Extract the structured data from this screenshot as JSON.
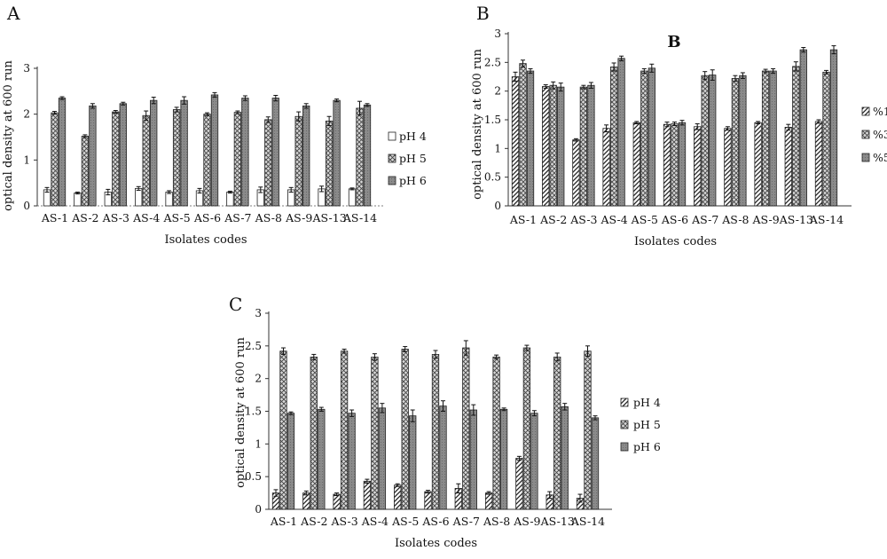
{
  "chart_data": [
    {
      "panel": "A",
      "type": "bar",
      "title": "",
      "xlabel": "Isolates codes",
      "ylabel": "optical density at 600 run",
      "ylim": [
        0,
        3
      ],
      "yticks": [
        "0",
        "1",
        "2",
        "3"
      ],
      "categories": [
        "AS-1",
        "AS-2",
        "AS-3",
        "AS-4",
        "AS-5",
        "AS-6",
        "AS-7",
        "AS-8",
        "AS-9",
        "AS-13",
        "AS-14"
      ],
      "legend_position": "right",
      "series": [
        {
          "name": "pH 4",
          "pattern": "white",
          "values": [
            0.35,
            0.28,
            0.3,
            0.38,
            0.3,
            0.33,
            0.3,
            0.35,
            0.35,
            0.37,
            0.37
          ],
          "errors": [
            0.05,
            0.02,
            0.06,
            0.04,
            0.03,
            0.05,
            0.02,
            0.06,
            0.05,
            0.06,
            0.02
          ]
        },
        {
          "name": "pH 5",
          "pattern": "hatch",
          "values": [
            2.03,
            1.52,
            2.05,
            1.97,
            2.1,
            2.0,
            2.04,
            1.88,
            1.95,
            1.85,
            2.13
          ],
          "errors": [
            0.03,
            0.03,
            0.03,
            0.1,
            0.05,
            0.03,
            0.03,
            0.06,
            0.1,
            0.1,
            0.15
          ]
        },
        {
          "name": "pH 6",
          "pattern": "gray",
          "values": [
            2.35,
            2.18,
            2.23,
            2.3,
            2.3,
            2.42,
            2.35,
            2.35,
            2.18,
            2.3,
            2.2
          ],
          "errors": [
            0.03,
            0.05,
            0.03,
            0.07,
            0.08,
            0.05,
            0.05,
            0.06,
            0.05,
            0.03,
            0.03
          ]
        }
      ]
    },
    {
      "panel": "B",
      "type": "bar",
      "title": "B",
      "xlabel": "Isolates codes",
      "ylabel": "optical density at 600 run",
      "ylim": [
        0,
        3
      ],
      "yticks": [
        "0",
        "0.5",
        "1",
        "1.5",
        "2",
        "2.5",
        "3"
      ],
      "categories": [
        "AS-1",
        "AS-2",
        "AS-3",
        "AS-4",
        "AS-5",
        "AS-6",
        "AS-7",
        "AS-8",
        "AS-9",
        "AS-13",
        "AS-14"
      ],
      "legend_position": "right",
      "series": [
        {
          "name": "%1",
          "pattern": "diag",
          "values": [
            2.25,
            2.08,
            1.15,
            1.35,
            1.45,
            1.42,
            1.38,
            1.35,
            1.45,
            1.37,
            1.47
          ],
          "errors": [
            0.08,
            0.03,
            0.02,
            0.06,
            0.02,
            0.04,
            0.05,
            0.03,
            0.02,
            0.05,
            0.03
          ]
        },
        {
          "name": "%3",
          "pattern": "hatch",
          "values": [
            2.48,
            2.1,
            2.07,
            2.42,
            2.35,
            1.43,
            2.27,
            2.22,
            2.35,
            2.43,
            2.33
          ],
          "errors": [
            0.06,
            0.06,
            0.03,
            0.07,
            0.04,
            0.03,
            0.07,
            0.05,
            0.03,
            0.08,
            0.03
          ]
        },
        {
          "name": "%5",
          "pattern": "gray",
          "values": [
            2.35,
            2.07,
            2.1,
            2.57,
            2.4,
            1.45,
            2.28,
            2.27,
            2.35,
            2.72,
            2.72
          ],
          "errors": [
            0.04,
            0.07,
            0.05,
            0.04,
            0.07,
            0.04,
            0.09,
            0.05,
            0.04,
            0.04,
            0.07
          ]
        }
      ]
    },
    {
      "panel": "C",
      "type": "bar",
      "title": "",
      "xlabel": "Isolates codes",
      "ylabel": "optical density at 600 run",
      "ylim": [
        0,
        3
      ],
      "yticks": [
        "0",
        "0.5",
        "1",
        "1.5",
        "2",
        "2.5",
        "3"
      ],
      "categories": [
        "AS-1",
        "AS-2",
        "AS-3",
        "AS-4",
        "AS-5",
        "AS-6",
        "AS-7",
        "AS-8",
        "AS-9",
        "AS-13",
        "AS-14"
      ],
      "legend_position": "right",
      "series": [
        {
          "name": "pH 4",
          "pattern": "diag",
          "values": [
            0.25,
            0.25,
            0.23,
            0.43,
            0.37,
            0.27,
            0.32,
            0.25,
            0.78,
            0.22,
            0.17
          ],
          "errors": [
            0.05,
            0.03,
            0.02,
            0.03,
            0.02,
            0.02,
            0.07,
            0.02,
            0.03,
            0.05,
            0.06
          ]
        },
        {
          "name": "pH 5",
          "pattern": "hatch",
          "values": [
            2.42,
            2.33,
            2.42,
            2.33,
            2.45,
            2.37,
            2.47,
            2.33,
            2.47,
            2.33,
            2.42
          ],
          "errors": [
            0.05,
            0.04,
            0.03,
            0.05,
            0.04,
            0.06,
            0.11,
            0.03,
            0.04,
            0.06,
            0.08
          ]
        },
        {
          "name": "pH 6",
          "pattern": "gray",
          "values": [
            1.47,
            1.53,
            1.47,
            1.55,
            1.43,
            1.58,
            1.52,
            1.53,
            1.47,
            1.57,
            1.4
          ],
          "errors": [
            0.02,
            0.03,
            0.05,
            0.07,
            0.09,
            0.08,
            0.08,
            0.02,
            0.04,
            0.05,
            0.03
          ]
        }
      ]
    }
  ]
}
